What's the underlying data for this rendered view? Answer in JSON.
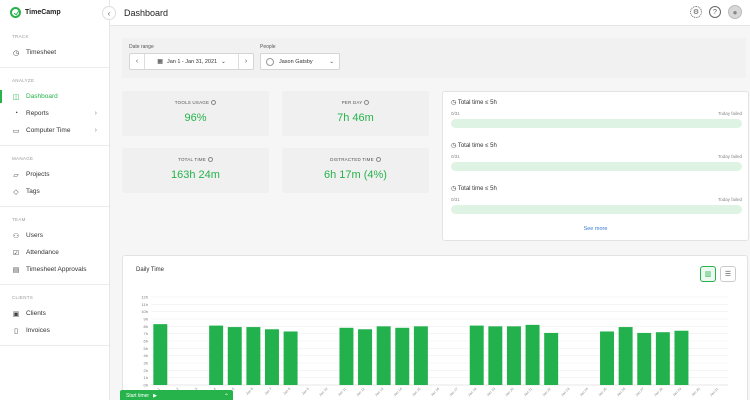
{
  "app": {
    "name": "TimeCamp"
  },
  "header": {
    "title": "Dashboard"
  },
  "sidebar": {
    "sections": [
      {
        "title": "TRACK",
        "items": [
          {
            "label": "Timesheet",
            "icon": "clock-icon"
          }
        ]
      },
      {
        "title": "ANALYZE",
        "items": [
          {
            "label": "Dashboard",
            "icon": "dashboard-icon",
            "active": true
          },
          {
            "label": "Reports",
            "icon": "reports-icon",
            "chevron": true
          },
          {
            "label": "Computer Time",
            "icon": "monitor-icon",
            "chevron": true
          }
        ]
      },
      {
        "title": "MANAGE",
        "items": [
          {
            "label": "Projects",
            "icon": "folder-icon"
          },
          {
            "label": "Tags",
            "icon": "tag-icon"
          }
        ]
      },
      {
        "title": "TEAM",
        "items": [
          {
            "label": "Users",
            "icon": "users-icon"
          },
          {
            "label": "Attendance",
            "icon": "check-square-icon"
          },
          {
            "label": "Timesheet Approvals",
            "icon": "approval-icon"
          }
        ]
      },
      {
        "title": "CLIENTS",
        "items": [
          {
            "label": "Clients",
            "icon": "briefcase-icon"
          },
          {
            "label": "Invoices",
            "icon": "invoice-icon"
          }
        ]
      }
    ]
  },
  "filters": {
    "date_label": "Date range",
    "date_value": "Jan 1 - Jan 31, 2021",
    "people_label": "People",
    "people_value": "Jason Gatsby"
  },
  "stats": {
    "tools_usage": {
      "label": "TOOLS USAGE",
      "value": "96%"
    },
    "per_day": {
      "label": "PER DAY",
      "value": "7h 46m"
    },
    "total_time": {
      "label": "TOTAL TIME",
      "value": "163h 24m"
    },
    "distracted_time": {
      "label": "DISTRACTED TIME",
      "value": "6h 17m (4%)"
    }
  },
  "goals": {
    "items": [
      {
        "title": "Total time ≤ 5h",
        "left": "0/31",
        "right": "Today failed"
      },
      {
        "title": "Total time ≤ 5h",
        "left": "0/31",
        "right": "Today failed"
      },
      {
        "title": "Total time ≤ 5h",
        "left": "0/31",
        "right": "Today failed"
      }
    ],
    "see_more": "See more"
  },
  "timer": {
    "label": "Start timer"
  },
  "colors": {
    "accent": "#26b34b",
    "bar": "#22b14c"
  },
  "chart_data": {
    "type": "bar",
    "title": "Daily Time",
    "ylim": [
      0,
      12
    ],
    "y_ticks": [
      "0h",
      "1h",
      "2h",
      "3h",
      "4h",
      "5h",
      "6h",
      "7h",
      "8h",
      "9h",
      "10h",
      "11h",
      "12h"
    ],
    "categories": [
      "Jan 1",
      "Jan 2",
      "Jan 3",
      "Jan 4",
      "Jan 5",
      "Jan 6",
      "Jan 7",
      "Jan 8",
      "Jan 9",
      "Jan 10",
      "Jan 11",
      "Jan 12",
      "Jan 13",
      "Jan 14",
      "Jan 15",
      "Jan 16",
      "Jan 17",
      "Jan 18",
      "Jan 19",
      "Jan 20",
      "Jan 21",
      "Jan 22",
      "Jan 23",
      "Jan 24",
      "Jan 25",
      "Jan 26",
      "Jan 27",
      "Jan 28",
      "Jan 29",
      "Jan 30",
      "Jan 31"
    ],
    "values": [
      8.3,
      0,
      0,
      8.1,
      7.9,
      7.9,
      7.6,
      7.3,
      0,
      0,
      7.8,
      7.6,
      8.0,
      7.8,
      8.0,
      0,
      0,
      8.1,
      8.0,
      8.0,
      8.2,
      7.1,
      0,
      0,
      7.3,
      7.9,
      7.1,
      7.2,
      7.4,
      0,
      0
    ]
  }
}
